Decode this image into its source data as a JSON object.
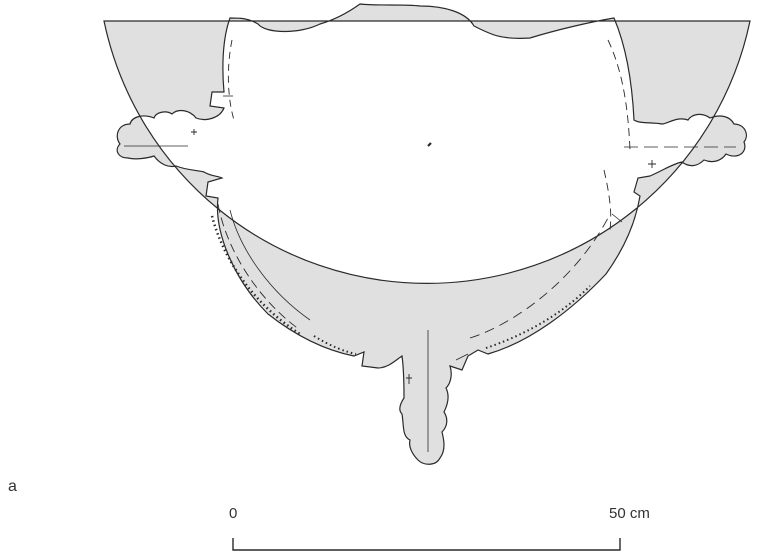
{
  "figure": {
    "panel_label": "a",
    "scale_bar": {
      "start_label": "0",
      "end_label": "50 cm"
    },
    "colors": {
      "fill": "#e0e0e0",
      "outline": "#2a2a2a",
      "background": "#ffffff"
    }
  }
}
